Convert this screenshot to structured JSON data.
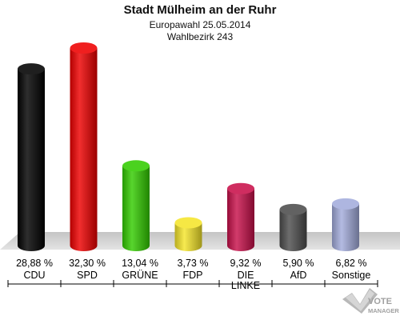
{
  "chart_data": {
    "type": "bar",
    "title": "Stadt Mülheim an der Ruhr",
    "subtitle_lines": [
      "Europawahl 25.05.2014",
      "Wahlbezirk 243"
    ],
    "categories": [
      "CDU",
      "SPD",
      "GRÜNE",
      "FDP",
      "DIE LINKE",
      "AfD",
      "Sonstige"
    ],
    "category_lines": [
      [
        "CDU"
      ],
      [
        "SPD"
      ],
      [
        "GRÜNE"
      ],
      [
        "FDP"
      ],
      [
        "DIE",
        "LINKE"
      ],
      [
        "AfD"
      ],
      [
        "Sonstige"
      ]
    ],
    "values": [
      28.88,
      32.3,
      13.04,
      3.73,
      9.32,
      5.9,
      6.82
    ],
    "value_labels": [
      "28,88 %",
      "32,30 %",
      "13,04 %",
      "3,73 %",
      "9,32 %",
      "5,90 %",
      "6,82 %"
    ],
    "colors": [
      "#000000",
      "#ee0000",
      "#33cc00",
      "#f5e52a",
      "#c8104a",
      "#4d4d4d",
      "#a3acdc"
    ],
    "ylim": [
      0,
      32.3
    ],
    "grid": false
  },
  "logo": {
    "line1": "VOTE",
    "line2": "MANAGER"
  }
}
